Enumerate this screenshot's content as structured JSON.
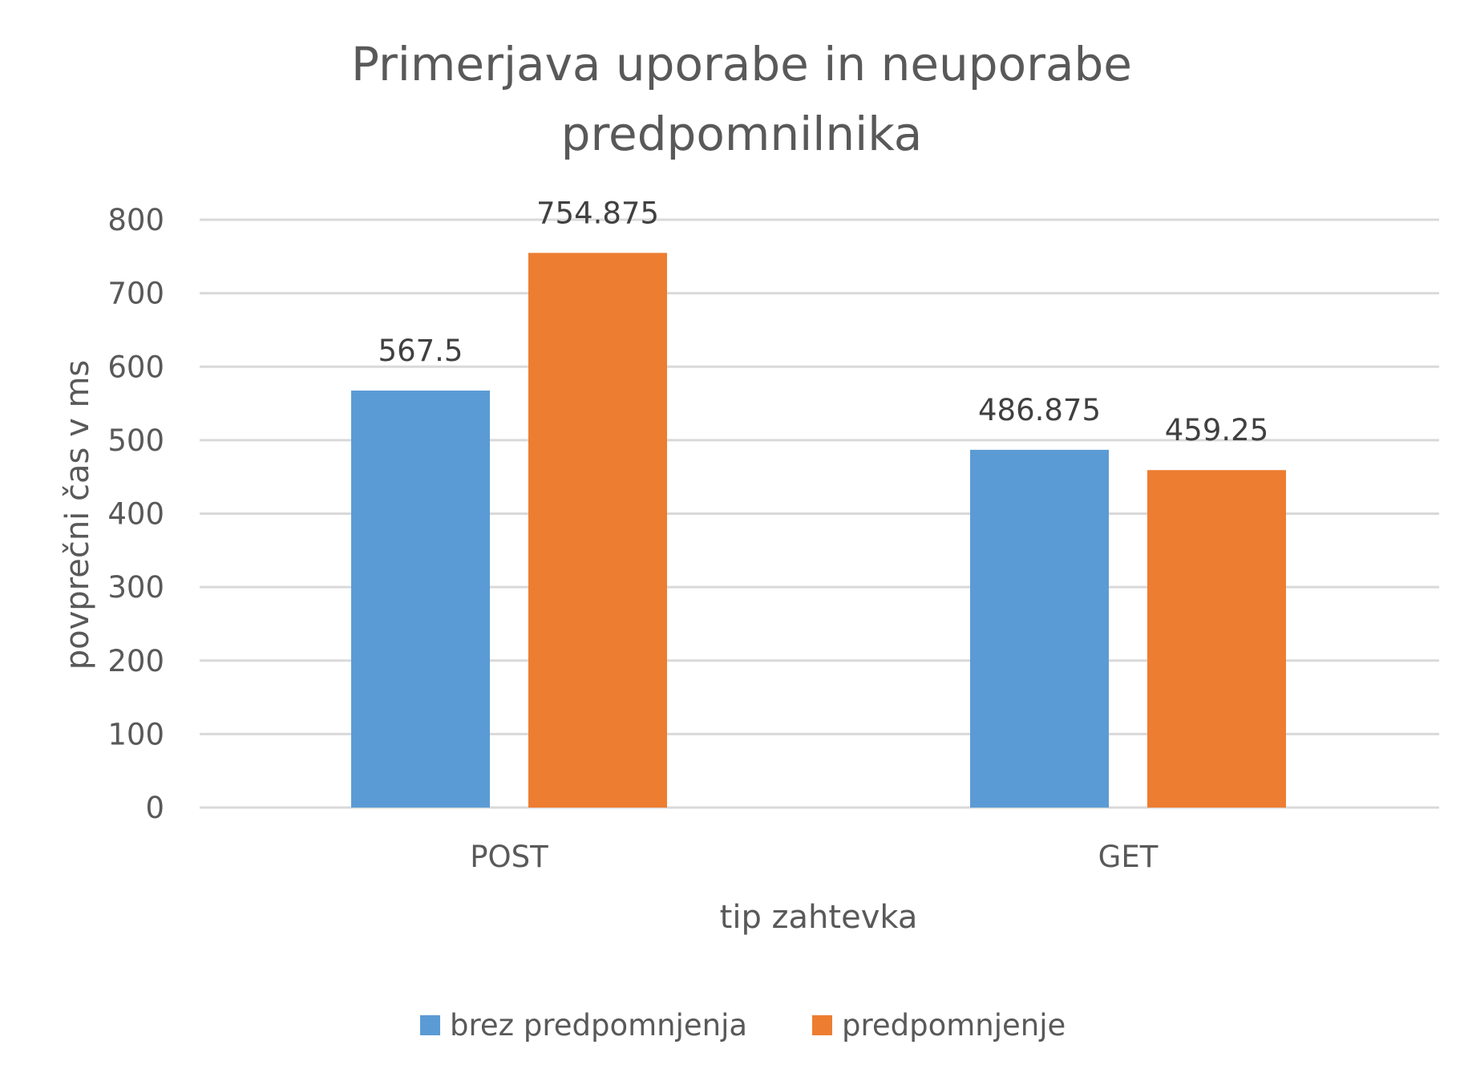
{
  "chart_data": {
    "type": "bar",
    "title": "Primerjava uporabe in neuporabe predpomnilnika",
    "title_lines": [
      "Primerjava uporabe in neuporabe",
      "predpomnilnika"
    ],
    "xlabel": "tip zahtevka",
    "ylabel": "povprečni čas v ms",
    "categories": [
      "POST",
      "GET"
    ],
    "ylim": [
      0,
      800
    ],
    "yticks": [
      0,
      100,
      200,
      300,
      400,
      500,
      600,
      700,
      800
    ],
    "grid": true,
    "legend_position": "bottom",
    "series": [
      {
        "name": "brez predpomnjenja",
        "color": "#5b9bd5",
        "values": [
          567.5,
          486.875
        ],
        "labels": [
          "567.5",
          "486.875"
        ]
      },
      {
        "name": "predpomnjenje",
        "color": "#ed7d31",
        "values": [
          754.875,
          459.25
        ],
        "labels": [
          "754.875",
          "459.25"
        ]
      }
    ]
  }
}
